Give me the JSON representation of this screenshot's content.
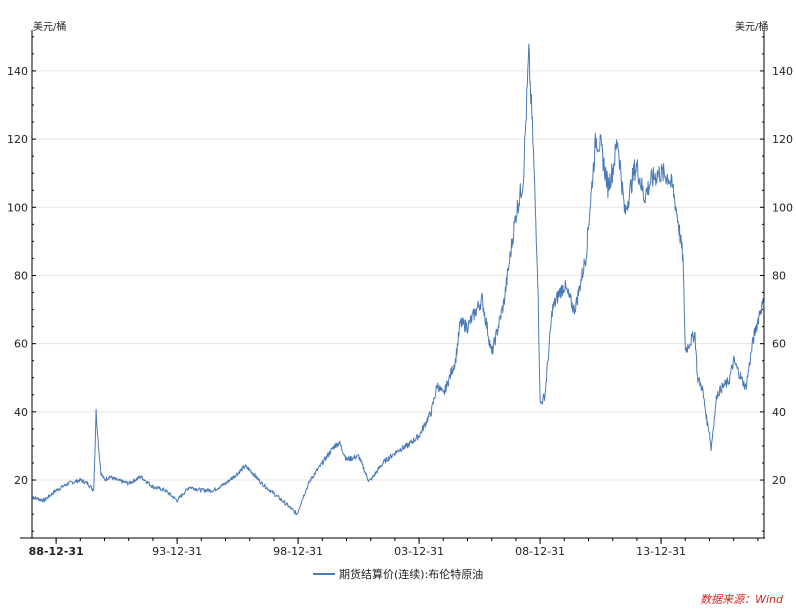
{
  "chart_data": {
    "type": "line",
    "title": "",
    "left_unit": "美元/桶",
    "right_unit": "美元/桶",
    "x_ticks": [
      "88-12-31",
      "93-12-31",
      "98-12-31",
      "03-12-31",
      "08-12-31",
      "13-12-31"
    ],
    "x_tick_years": [
      1988.997,
      1993.997,
      1998.997,
      2003.997,
      2008.997,
      2013.997
    ],
    "xlim": [
      1988.0,
      2018.25
    ],
    "ylim": [
      3,
      152
    ],
    "y_ticks": [
      20,
      40,
      60,
      80,
      100,
      120,
      140
    ],
    "grid": "horizontal",
    "legend_position": "bottom",
    "source": "数据来源：Wind",
    "colors": {
      "series": "#4a7ab5",
      "grid": "#e6e6e6",
      "axis": "#000000",
      "source": "#dd2222"
    },
    "series": [
      {
        "name": "期货结算价(连续):布伦特原油",
        "x": [
          1988.0,
          1988.5,
          1989.0,
          1989.5,
          1990.0,
          1990.3,
          1990.55,
          1990.65,
          1990.75,
          1990.85,
          1991.0,
          1991.2,
          1991.5,
          1992.0,
          1992.5,
          1993.0,
          1993.5,
          1994.0,
          1994.5,
          1995.0,
          1995.5,
          1996.0,
          1996.5,
          1996.8,
          1997.0,
          1997.5,
          1998.0,
          1998.5,
          1998.95,
          1999.2,
          1999.5,
          2000.0,
          2000.5,
          2000.7,
          2001.0,
          2001.5,
          2001.9,
          2002.0,
          2002.5,
          2003.0,
          2003.2,
          2003.5,
          2004.0,
          2004.5,
          2004.75,
          2005.0,
          2005.5,
          2005.7,
          2006.0,
          2006.6,
          2007.0,
          2007.5,
          2007.9,
          2008.0,
          2008.3,
          2008.53,
          2008.7,
          2008.9,
          2009.0,
          2009.2,
          2009.5,
          2009.8,
          2010.0,
          2010.4,
          2010.5,
          2010.9,
          2011.0,
          2011.3,
          2011.5,
          2011.8,
          2012.0,
          2012.2,
          2012.5,
          2012.9,
          2013.0,
          2013.3,
          2013.6,
          2013.9,
          2014.0,
          2014.3,
          2014.5,
          2014.7,
          2014.9,
          2015.0,
          2015.4,
          2015.5,
          2015.7,
          2015.9,
          2016.0,
          2016.06,
          2016.3,
          2016.5,
          2016.8,
          2017.0,
          2017.3,
          2017.5,
          2017.8,
          2018.0,
          2018.1,
          2018.25
        ],
        "values": [
          15,
          14,
          17,
          19,
          20,
          19,
          17,
          40,
          30,
          22,
          20,
          21,
          20,
          19,
          21,
          18,
          17,
          14,
          18,
          17,
          17,
          19,
          22,
          24,
          23,
          19,
          16,
          13,
          10,
          15,
          20,
          25,
          30,
          31,
          26,
          27,
          20,
          20,
          25,
          28,
          29,
          30,
          33,
          40,
          48,
          45,
          55,
          66,
          65,
          73,
          57,
          72,
          93,
          98,
          108,
          145,
          120,
          80,
          42,
          45,
          70,
          75,
          77,
          70,
          72,
          86,
          95,
          120,
          118,
          106,
          111,
          120,
          98,
          111,
          112,
          103,
          108,
          110,
          110,
          109,
          105,
          96,
          85,
          58,
          63,
          50,
          47,
          37,
          34,
          29,
          45,
          47,
          49,
          55,
          50,
          47,
          61,
          67,
          70,
          72
        ]
      }
    ]
  }
}
